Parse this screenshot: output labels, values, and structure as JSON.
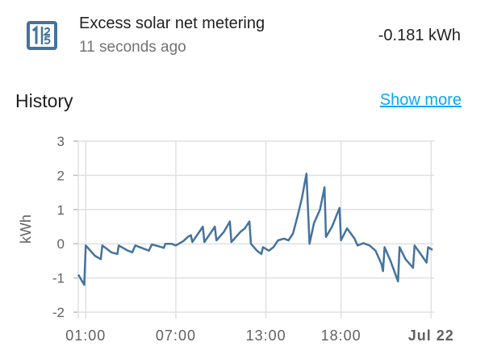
{
  "entity": {
    "icon": "solar-meter-icon",
    "name": "Excess solar net metering",
    "last_updated": "11 seconds ago",
    "value": "-0.181 kWh"
  },
  "history": {
    "title": "History",
    "show_more_label": "Show more"
  },
  "colors": {
    "accent": "#03a9f4",
    "line": "#44739e",
    "icon": "#44739e"
  },
  "chart_data": {
    "type": "line",
    "ylabel": "kWh",
    "ylim": [
      -2,
      3
    ],
    "yticks": [
      "3",
      "2",
      "1",
      "0",
      "-1",
      "-2"
    ],
    "xticks": [
      {
        "label": "01:00",
        "x": 1.0
      },
      {
        "label": "07:00",
        "x": 7.0
      },
      {
        "label": "13:00",
        "x": 13.0
      },
      {
        "label": "18:00",
        "x": 18.0
      },
      {
        "label": "Jul 22",
        "x": 24.0,
        "bold": true
      }
    ],
    "xlim": [
      0.5,
      24.2
    ],
    "grid": true,
    "series": [
      {
        "values": [
          [
            0.5,
            -0.9
          ],
          [
            0.9,
            -1.2
          ],
          [
            1.0,
            -0.05
          ],
          [
            1.6,
            -0.35
          ],
          [
            2.0,
            -0.45
          ],
          [
            2.1,
            -0.05
          ],
          [
            2.7,
            -0.25
          ],
          [
            3.1,
            -0.3
          ],
          [
            3.2,
            -0.05
          ],
          [
            3.8,
            -0.2
          ],
          [
            4.1,
            -0.25
          ],
          [
            4.3,
            -0.05
          ],
          [
            4.9,
            -0.15
          ],
          [
            5.2,
            -0.2
          ],
          [
            5.4,
            -0.02
          ],
          [
            5.9,
            -0.08
          ],
          [
            6.2,
            -0.12
          ],
          [
            6.3,
            0.0
          ],
          [
            6.7,
            0.0
          ],
          [
            7.0,
            -0.05
          ],
          [
            7.5,
            0.08
          ],
          [
            7.8,
            0.2
          ],
          [
            8.0,
            0.25
          ],
          [
            8.1,
            0.05
          ],
          [
            8.8,
            0.5
          ],
          [
            8.9,
            0.05
          ],
          [
            9.6,
            0.5
          ],
          [
            9.7,
            0.1
          ],
          [
            10.2,
            0.35
          ],
          [
            10.6,
            0.65
          ],
          [
            10.7,
            0.05
          ],
          [
            11.3,
            0.35
          ],
          [
            11.6,
            0.45
          ],
          [
            11.9,
            0.65
          ],
          [
            12.0,
            0.0
          ],
          [
            12.4,
            -0.2
          ],
          [
            12.7,
            -0.3
          ],
          [
            12.8,
            -0.1
          ],
          [
            13.2,
            -0.2
          ],
          [
            13.5,
            -0.1
          ],
          [
            13.8,
            0.1
          ],
          [
            14.2,
            0.15
          ],
          [
            14.5,
            0.1
          ],
          [
            14.8,
            0.3
          ],
          [
            15.1,
            0.8
          ],
          [
            15.4,
            1.35
          ],
          [
            15.7,
            2.05
          ],
          [
            15.9,
            0.0
          ],
          [
            16.2,
            0.6
          ],
          [
            16.6,
            1.0
          ],
          [
            16.9,
            1.65
          ],
          [
            17.0,
            0.2
          ],
          [
            17.4,
            0.5
          ],
          [
            17.9,
            1.05
          ],
          [
            18.0,
            0.1
          ],
          [
            18.4,
            0.45
          ],
          [
            18.9,
            0.15
          ],
          [
            19.1,
            -0.05
          ],
          [
            19.5,
            0.02
          ],
          [
            19.9,
            -0.05
          ],
          [
            20.3,
            -0.2
          ],
          [
            20.7,
            -0.6
          ],
          [
            20.8,
            -0.8
          ],
          [
            20.9,
            -0.1
          ],
          [
            21.3,
            -0.5
          ],
          [
            21.8,
            -1.1
          ],
          [
            21.9,
            -0.1
          ],
          [
            22.3,
            -0.45
          ],
          [
            22.8,
            -0.7
          ],
          [
            22.9,
            -0.05
          ],
          [
            23.3,
            -0.3
          ],
          [
            23.7,
            -0.55
          ],
          [
            23.8,
            -0.1
          ],
          [
            24.1,
            -0.18
          ]
        ]
      }
    ]
  }
}
